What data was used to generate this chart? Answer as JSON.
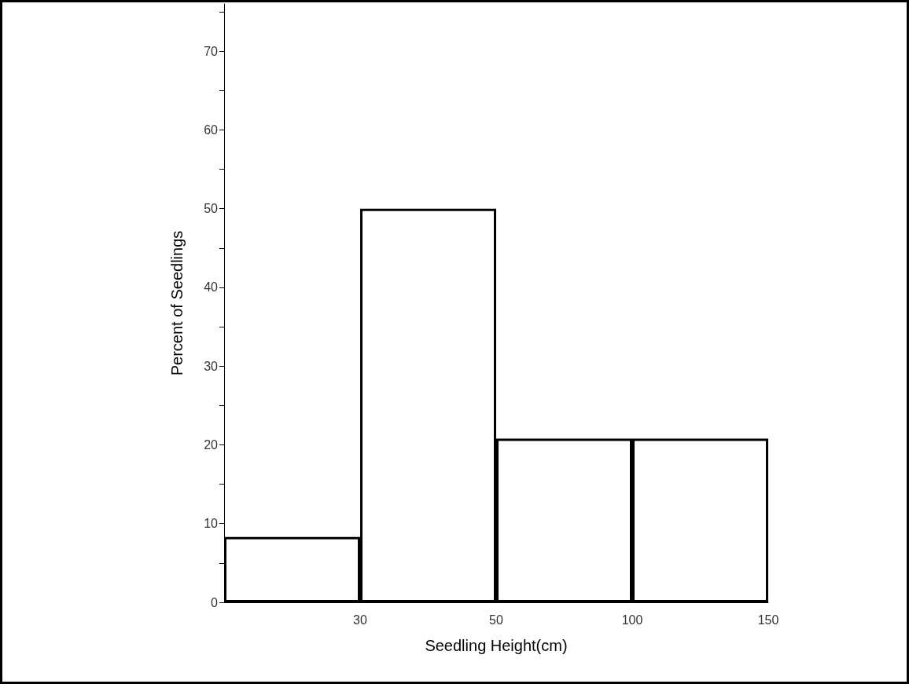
{
  "chart_data": {
    "type": "bar",
    "xlabel": "Seedling Height(cm)",
    "ylabel": "Percent of Seedlings",
    "categories": [
      "30",
      "50",
      "100",
      "150"
    ],
    "values": [
      8.3,
      50,
      20.8,
      20.8
    ],
    "color": "#000000",
    "ylim": [
      0,
      76
    ],
    "yticks": [
      0,
      {
        "value": 5,
        "label": null
      },
      10,
      {
        "value": 15,
        "label": null
      },
      20,
      {
        "value": 25,
        "label": null
      },
      30,
      {
        "value": 35,
        "label": null
      },
      40,
      {
        "value": 45,
        "label": null
      },
      50,
      {
        "value": 55,
        "label": null
      },
      60,
      {
        "value": 65,
        "label": null
      },
      70,
      {
        "value": 75,
        "label": null
      }
    ],
    "grid": false
  }
}
